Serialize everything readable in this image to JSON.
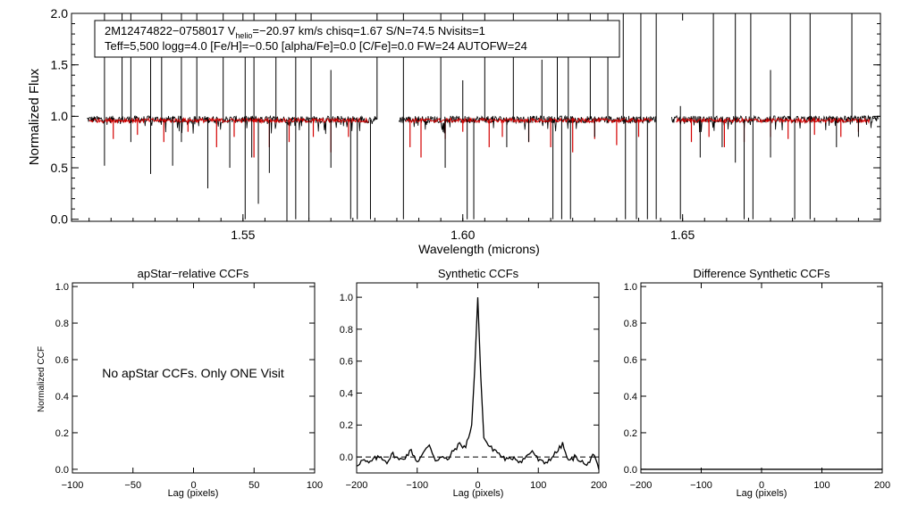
{
  "chart_data": [
    {
      "type": "line",
      "panel": "spectrum",
      "xlabel": "Wavelength (microns)",
      "ylabel": "Normalized Flux",
      "xlim": [
        1.511,
        1.695
      ],
      "ylim": [
        -0.02,
        2.0
      ],
      "xticks": [
        "1.55",
        "1.60",
        "1.65"
      ],
      "xtick_values": [
        1.55,
        1.6,
        1.65
      ],
      "yticks": [
        "0.0",
        "0.5",
        "1.0",
        "1.5",
        "2.0"
      ],
      "ytick_values": [
        0.0,
        0.5,
        1.0,
        1.5,
        2.0
      ],
      "info_line1": "2M12474822−0758017  V",
      "info_sub": "helio",
      "info_line1b": "=−20.97 km/s  chisq=1.67  S/N=74.5  Nvisits=1",
      "info_line2": "Teff=5,500 logg=4.0 [Fe/H]=−0.50 [alpha/Fe]=0.0 [C/Fe]=0.0 FW=24 AUTOFW=24",
      "chips": [
        [
          1.5145,
          1.5805
        ],
        [
          1.5855,
          1.644
        ],
        [
          1.6475,
          1.6945
        ]
      ],
      "baseline": 0.97,
      "series": [
        {
          "name": "observed",
          "color": "#000000"
        },
        {
          "name": "model",
          "color": "#d40000",
          "ranges": [
            [
              1.515,
              1.5785
            ],
            [
              1.587,
              1.643
            ],
            [
              1.6485,
              1.6925
            ]
          ]
        }
      ],
      "spikes": [
        [
          1.5185,
          2.0
        ],
        [
          1.5225,
          2.0
        ],
        [
          1.5245,
          2.0
        ],
        [
          1.529,
          1.75
        ],
        [
          1.5315,
          2.0
        ],
        [
          1.536,
          2.0
        ],
        [
          1.5395,
          2.0
        ],
        [
          1.5455,
          2.0
        ],
        [
          1.5505,
          1.6
        ],
        [
          1.5525,
          2.0
        ],
        [
          1.5575,
          2.0
        ],
        [
          1.562,
          2.0
        ],
        [
          1.5655,
          2.0
        ],
        [
          1.57,
          1.45
        ],
        [
          1.5805,
          2.0
        ],
        [
          1.5865,
          2.0
        ],
        [
          1.595,
          2.0
        ],
        [
          1.6,
          1.35
        ],
        [
          1.605,
          2.0
        ],
        [
          1.6115,
          2.0
        ],
        [
          1.618,
          1.55
        ],
        [
          1.6215,
          2.0
        ],
        [
          1.624,
          2.0
        ],
        [
          1.629,
          2.0
        ],
        [
          1.633,
          2.0
        ],
        [
          1.6365,
          2.0
        ],
        [
          1.6405,
          2.0
        ],
        [
          1.644,
          2.0
        ],
        [
          1.6495,
          1.1
        ],
        [
          1.657,
          2.0
        ],
        [
          1.662,
          2.0
        ],
        [
          1.6655,
          2.0
        ],
        [
          1.67,
          1.45
        ],
        [
          1.6745,
          2.0
        ],
        [
          1.679,
          2.0
        ],
        [
          1.6885,
          2.0
        ]
      ],
      "dips": [
        [
          1.516,
          0.95
        ],
        [
          1.5185,
          0.52
        ],
        [
          1.5245,
          0.75
        ],
        [
          1.529,
          0.44
        ],
        [
          1.534,
          0.52
        ],
        [
          1.536,
          0.75
        ],
        [
          1.542,
          0.3
        ],
        [
          1.547,
          0.5
        ],
        [
          1.5505,
          0.0
        ],
        [
          1.552,
          0.6
        ],
        [
          1.5535,
          0.15
        ],
        [
          1.556,
          0.45
        ],
        [
          1.56,
          0.0
        ],
        [
          1.562,
          0.0
        ],
        [
          1.565,
          0.0
        ],
        [
          1.57,
          0.5
        ],
        [
          1.5745,
          0.0
        ],
        [
          1.576,
          0.0
        ],
        [
          1.579,
          0.0
        ],
        [
          1.5865,
          0.0
        ],
        [
          1.596,
          0.5
        ],
        [
          1.601,
          0.0
        ],
        [
          1.6025,
          0.0
        ],
        [
          1.61,
          0.7
        ],
        [
          1.615,
          0.75
        ],
        [
          1.6205,
          0.0
        ],
        [
          1.6225,
          0.0
        ],
        [
          1.6245,
          0.0
        ],
        [
          1.63,
          0.8
        ],
        [
          1.637,
          0.0
        ],
        [
          1.6395,
          0.0
        ],
        [
          1.642,
          0.0
        ],
        [
          1.644,
          0.0
        ],
        [
          1.6495,
          0.0
        ],
        [
          1.654,
          0.6
        ],
        [
          1.659,
          0.7
        ],
        [
          1.662,
          0.55
        ],
        [
          1.664,
          0.0
        ],
        [
          1.666,
          0.0
        ],
        [
          1.67,
          0.6
        ],
        [
          1.6755,
          0.0
        ],
        [
          1.679,
          0.0
        ],
        [
          1.685,
          0.7
        ],
        [
          1.69,
          0.8
        ]
      ],
      "model_lines": [
        [
          1.5205,
          0.78
        ],
        [
          1.526,
          0.82
        ],
        [
          1.532,
          0.75
        ],
        [
          1.5375,
          0.85
        ],
        [
          1.544,
          0.7
        ],
        [
          1.548,
          0.8
        ],
        [
          1.5525,
          0.6
        ],
        [
          1.556,
          0.7
        ],
        [
          1.5605,
          0.75
        ],
        [
          1.566,
          0.8
        ],
        [
          1.57,
          0.65
        ],
        [
          1.574,
          0.8
        ],
        [
          1.588,
          0.7
        ],
        [
          1.5905,
          0.6
        ],
        [
          1.596,
          0.78
        ],
        [
          1.6,
          0.85
        ],
        [
          1.606,
          0.7
        ],
        [
          1.609,
          0.8
        ],
        [
          1.615,
          0.75
        ],
        [
          1.62,
          0.7
        ],
        [
          1.625,
          0.65
        ],
        [
          1.63,
          0.78
        ],
        [
          1.635,
          0.72
        ],
        [
          1.64,
          0.8
        ],
        [
          1.652,
          0.75
        ],
        [
          1.656,
          0.8
        ],
        [
          1.6595,
          0.7
        ],
        [
          1.664,
          0.75
        ],
        [
          1.67,
          0.8
        ],
        [
          1.674,
          0.78
        ],
        [
          1.68,
          0.82
        ],
        [
          1.686,
          0.8
        ],
        [
          1.69,
          0.85
        ]
      ]
    },
    {
      "type": "line",
      "panel": "apstar_ccf",
      "title": "apStar−relative CCFs",
      "xlabel": "Lag (pixels)",
      "ylabel": "Normalized CCF",
      "xlim": [
        -100,
        100
      ],
      "ylim": [
        -0.02,
        1.02
      ],
      "xticks": [
        "−100",
        "−50",
        "0",
        "50",
        "100"
      ],
      "xtick_values": [
        -100,
        -50,
        0,
        50,
        100
      ],
      "yticks": [
        "0.0",
        "0.2",
        "0.4",
        "0.6",
        "0.8",
        "1.0"
      ],
      "ytick_values": [
        0.0,
        0.2,
        0.4,
        0.6,
        0.8,
        1.0
      ],
      "note": "No apStar CCFs.  Only ONE Visit",
      "note_pos": [
        0.5,
        0.5
      ]
    },
    {
      "type": "line",
      "panel": "synthetic_ccf",
      "title": "Synthetic CCFs",
      "xlabel": "Lag (pixels)",
      "xlim": [
        -200,
        200
      ],
      "ylim": [
        -0.1,
        1.09
      ],
      "xticks": [
        "−200",
        "−100",
        "0",
        "100",
        "200"
      ],
      "xtick_values": [
        -200,
        -100,
        0,
        100,
        200
      ],
      "yticks": [
        "0.0",
        "0.2",
        "0.4",
        "0.6",
        "0.8",
        "1.0"
      ],
      "ytick_values": [
        0.0,
        0.2,
        0.4,
        0.6,
        0.8,
        1.0
      ],
      "zero_line": 0.0,
      "x": [
        -200,
        -190,
        -180,
        -170,
        -160,
        -150,
        -140,
        -130,
        -120,
        -110,
        -100,
        -90,
        -80,
        -70,
        -60,
        -50,
        -40,
        -30,
        -20,
        -10,
        -5,
        0,
        5,
        10,
        20,
        30,
        40,
        50,
        60,
        70,
        80,
        90,
        100,
        110,
        120,
        130,
        140,
        150,
        160,
        170,
        180,
        190,
        200
      ],
      "y": [
        -0.05,
        -0.02,
        -0.04,
        -0.01,
        0.0,
        -0.03,
        0.02,
        -0.02,
        0.0,
        0.04,
        -0.03,
        0.02,
        0.08,
        -0.02,
        0.0,
        -0.02,
        0.04,
        0.08,
        0.06,
        0.2,
        0.55,
        1.0,
        0.5,
        0.12,
        0.06,
        0.04,
        0.0,
        -0.02,
        0.0,
        -0.03,
        0.0,
        0.04,
        -0.02,
        -0.04,
        -0.01,
        0.03,
        0.08,
        -0.03,
        0.0,
        -0.02,
        -0.06,
        0.02,
        -0.08
      ]
    },
    {
      "type": "line",
      "panel": "difference_ccf",
      "title": "Difference Synthetic CCFs",
      "xlabel": "Lag (pixels)",
      "xlim": [
        -200,
        200
      ],
      "ylim": [
        -0.02,
        1.02
      ],
      "xticks": [
        "−200",
        "−100",
        "0",
        "100",
        "200"
      ],
      "xtick_values": [
        -200,
        -100,
        0,
        100,
        200
      ],
      "yticks": [
        "0.0",
        "0.2",
        "0.4",
        "0.6",
        "0.8",
        "1.0"
      ],
      "ytick_values": [
        0.0,
        0.2,
        0.4,
        0.6,
        0.8,
        1.0
      ],
      "flat_value": 0.0
    }
  ]
}
